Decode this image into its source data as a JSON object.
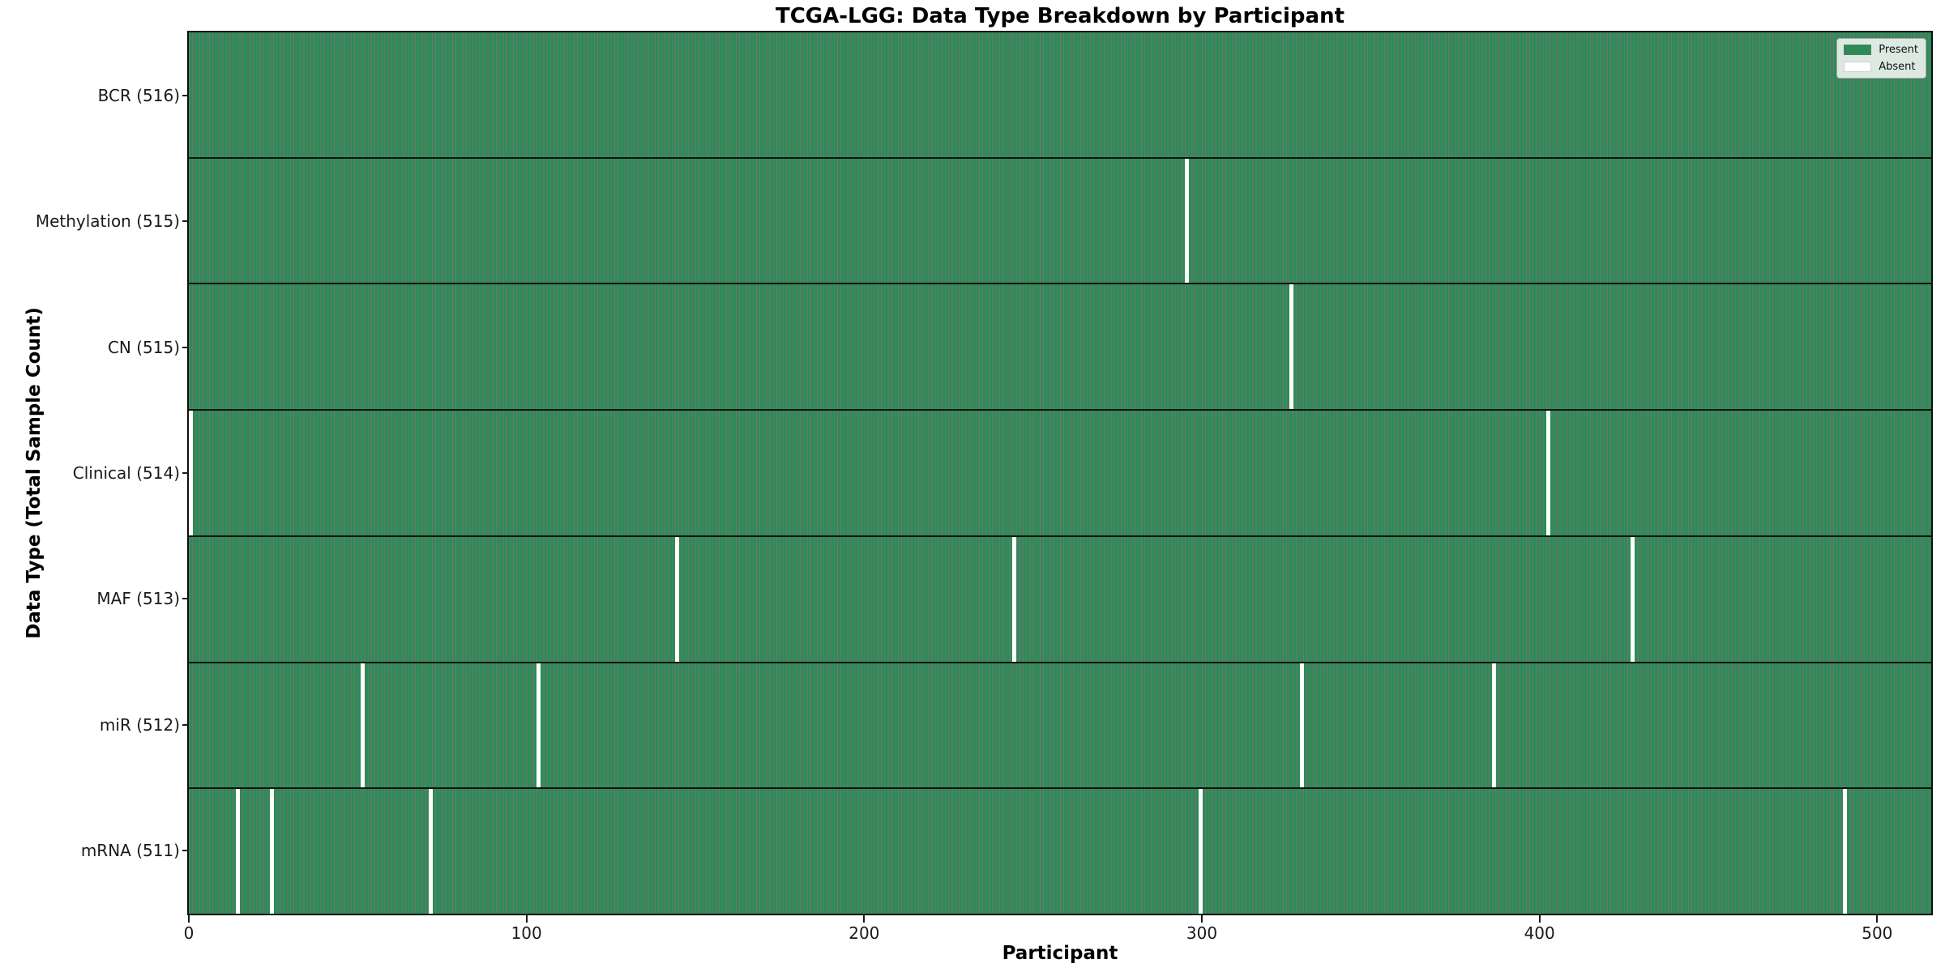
{
  "chart_data": {
    "type": "heatmap",
    "title": "TCGA-LGG: Data Type Breakdown by Participant",
    "xlabel": "Participant",
    "ylabel": "Data Type (Total Sample Count)",
    "x_ticks": [
      0,
      100,
      200,
      300,
      400,
      500
    ],
    "x_range": [
      0,
      516
    ],
    "n_participants": 516,
    "grid": false,
    "legend_position": "upper right",
    "legend": [
      {
        "label": "Present",
        "color": "#2e8b57"
      },
      {
        "label": "Absent",
        "color": "#ffffff"
      }
    ],
    "colors": {
      "present": "#2e8b57",
      "absent": "#ffffff",
      "bar_edge": "rgba(0,0,0,0.55)",
      "row_separator": "rgba(0,0,0,0.85)"
    },
    "rows": [
      {
        "label": "BCR (516)",
        "total": 516,
        "absent_participants": []
      },
      {
        "label": "Methylation (515)",
        "total": 515,
        "absent_participants": [
          295
        ]
      },
      {
        "label": "CN (515)",
        "total": 515,
        "absent_participants": [
          326
        ]
      },
      {
        "label": "Clinical (514)",
        "total": 514,
        "absent_participants": [
          0,
          402
        ]
      },
      {
        "label": "MAF (513)",
        "total": 513,
        "absent_participants": [
          144,
          244,
          427
        ]
      },
      {
        "label": "miR (512)",
        "total": 512,
        "absent_participants": [
          51,
          103,
          329,
          386
        ]
      },
      {
        "label": "mRNA (511)",
        "total": 511,
        "absent_participants": [
          14,
          24,
          71,
          299,
          490
        ]
      }
    ]
  }
}
